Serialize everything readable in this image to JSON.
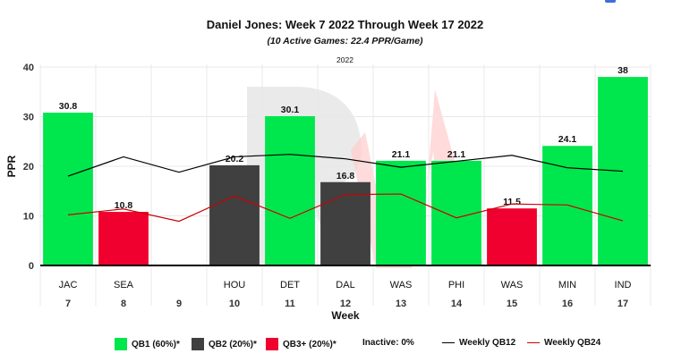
{
  "header": {
    "title": "Daniel Jones: Week 7 2022 Through Week 17 2022",
    "subtitle": "(10 Active Games: 22.4 PPR/Game)",
    "season": "2022"
  },
  "legend": {
    "qb1": "QB1 (60%)*",
    "qb2": "QB2 (20%)*",
    "qb3": "QB3+ (20%)*",
    "inactive": "Inactive: 0%",
    "weekly_qb12": "Weekly QB12",
    "weekly_qb24": "Weekly QB24"
  },
  "colors": {
    "qb1": "#00e64d",
    "qb2": "#404040",
    "qb3": "#f0002e",
    "weekly_qb12": "#000000",
    "weekly_qb24": "#cc0000",
    "watermark_gray": "#e6e6e6",
    "watermark_red": "#ffcccc"
  },
  "chart_data": {
    "type": "bar",
    "xlabel": "Week",
    "ylabel": "PPR",
    "ylim": [
      0,
      40
    ],
    "yticks": [
      0,
      10,
      20,
      30,
      40
    ],
    "grid": true,
    "legend_position": "bottom",
    "weeks": [
      "7",
      "8",
      "9",
      "10",
      "11",
      "12",
      "13",
      "14",
      "15",
      "16",
      "17"
    ],
    "opponents": [
      "JAC",
      "SEA",
      "",
      "HOU",
      "DET",
      "DAL",
      "WAS",
      "PHI",
      "WAS",
      "MIN",
      "IND"
    ],
    "values": [
      30.8,
      10.8,
      null,
      20.2,
      30.1,
      16.8,
      21.1,
      21.1,
      11.5,
      24.1,
      38
    ],
    "value_labels": [
      "30.8",
      "10.8",
      "",
      "20.2",
      "30.1",
      "16.8",
      "21.1",
      "21.1",
      "11.5",
      "24.1",
      "38"
    ],
    "tiers": [
      "qb1",
      "qb3",
      null,
      "qb2",
      "qb1",
      "qb2",
      "qb1",
      "qb1",
      "qb3",
      "qb1",
      "qb1"
    ],
    "series": [
      {
        "name": "Weekly QB12",
        "values": [
          18.0,
          21.9,
          18.8,
          21.9,
          22.4,
          21.5,
          19.8,
          21.0,
          22.2,
          19.7,
          19.0
        ]
      },
      {
        "name": "Weekly QB24",
        "values": [
          10.2,
          11.4,
          8.9,
          14.0,
          9.5,
          14.3,
          14.4,
          9.6,
          12.4,
          12.2,
          9.0
        ]
      }
    ]
  }
}
